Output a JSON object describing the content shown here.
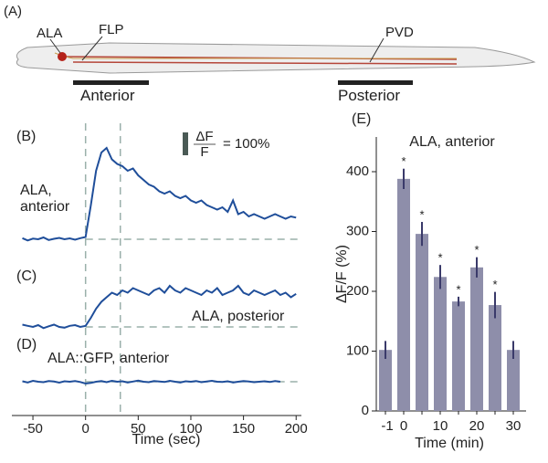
{
  "panel_a": {
    "label": "(A)",
    "neurons": [
      "ALA",
      "FLP",
      "PVD"
    ],
    "regions": [
      "Anterior",
      "Posterior"
    ]
  },
  "chart_data": [
    {
      "type": "line",
      "xlabel": "Time (sec)",
      "xlim": [
        -70,
        205
      ],
      "xticks": [
        -50,
        0,
        50,
        100,
        150,
        200
      ],
      "stimulus_lines": [
        0,
        33
      ],
      "scale_bar": {
        "value": 100,
        "numerator": "ΔF",
        "denominator": "F",
        "label": "= 100%"
      },
      "x": [
        -60,
        -55,
        -50,
        -45,
        -40,
        -35,
        -30,
        -25,
        -20,
        -15,
        -10,
        -5,
        0,
        5,
        10,
        15,
        20,
        25,
        30,
        35,
        40,
        45,
        50,
        55,
        60,
        65,
        70,
        75,
        80,
        85,
        90,
        95,
        100,
        105,
        110,
        115,
        120,
        125,
        130,
        135,
        140,
        145,
        150,
        155,
        160,
        165,
        170,
        175,
        180,
        185,
        190,
        195,
        200
      ],
      "series": [
        {
          "panel": "(B)",
          "name": "ALA, anterior",
          "color": "#1f4e9a",
          "values": [
            5,
            -5,
            3,
            0,
            8,
            -3,
            2,
            6,
            0,
            4,
            -2,
            5,
            10,
            150,
            300,
            380,
            400,
            350,
            330,
            320,
            300,
            310,
            280,
            260,
            240,
            230,
            210,
            200,
            210,
            190,
            180,
            190,
            170,
            160,
            170,
            150,
            140,
            130,
            140,
            120,
            170,
            110,
            120,
            100,
            110,
            100,
            90,
            100,
            110,
            100,
            90,
            100,
            95
          ]
        },
        {
          "panel": "(C)",
          "name": "ALA, posterior",
          "color": "#1f4e9a",
          "values": [
            10,
            5,
            0,
            8,
            -5,
            3,
            10,
            0,
            -3,
            5,
            8,
            0,
            5,
            40,
            80,
            110,
            130,
            150,
            140,
            160,
            150,
            170,
            160,
            150,
            140,
            160,
            170,
            150,
            180,
            160,
            150,
            170,
            160,
            150,
            140,
            160,
            150,
            170,
            140,
            150,
            160,
            180,
            150,
            140,
            160,
            150,
            140,
            150,
            160,
            140,
            150,
            130,
            145
          ]
        },
        {
          "panel": "(D)",
          "name": "ALA::GFP, anterior",
          "color": "#1f4e9a",
          "values": [
            2,
            -3,
            4,
            0,
            -2,
            3,
            1,
            -4,
            2,
            0,
            3,
            -1,
            -8,
            -5,
            0,
            3,
            -2,
            4,
            0,
            2,
            -3,
            1,
            5,
            0,
            -2,
            3,
            1,
            -1,
            4,
            0,
            -3,
            2,
            0,
            3,
            -2,
            1,
            4,
            0,
            -1,
            2,
            -3,
            0,
            3,
            1,
            -2,
            0,
            2,
            -1,
            3,
            0,
            null,
            null,
            null
          ]
        }
      ]
    },
    {
      "type": "bar",
      "panel": "(E)",
      "title": "ALA, anterior",
      "xlabel": "Time (min)",
      "ylabel": "ΔF/F (%)",
      "categories": [
        "-1",
        "0",
        null,
        "10",
        null,
        "20",
        null,
        "30"
      ],
      "values": [
        102,
        388,
        296,
        224,
        183,
        240,
        177,
        102
      ],
      "errors": [
        15,
        17,
        20,
        20,
        8,
        17,
        22,
        15
      ],
      "significance": [
        null,
        "*",
        "*",
        "*",
        "*",
        "*",
        "*",
        null
      ],
      "color": "#8e8eaa",
      "error_color": "#3a3a6a",
      "ylim": [
        0,
        458
      ],
      "yticks": [
        0,
        100,
        200,
        300,
        400
      ]
    }
  ]
}
